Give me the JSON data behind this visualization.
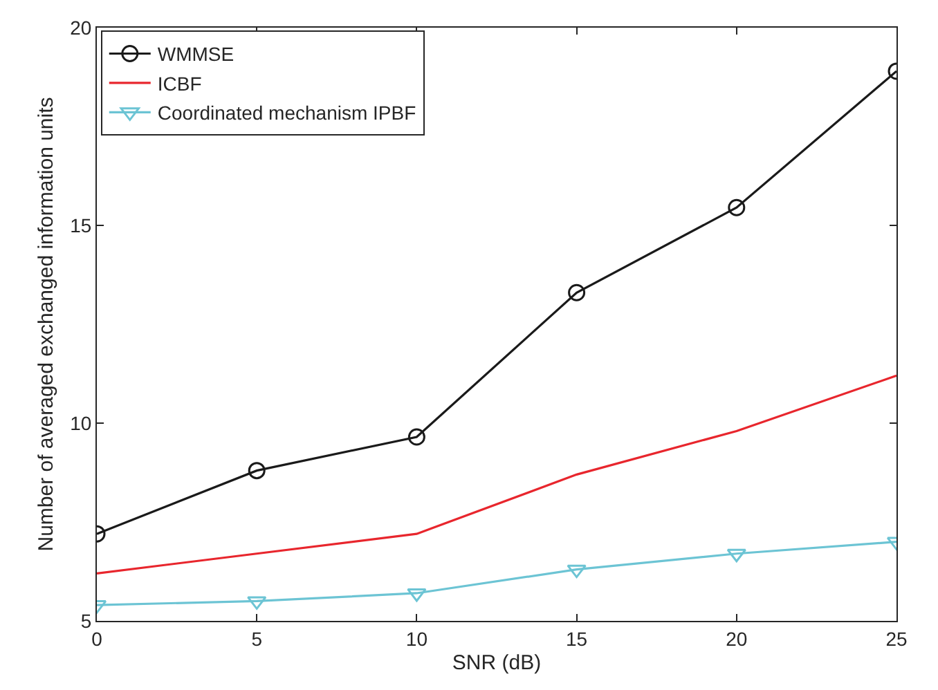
{
  "chart_data": {
    "type": "line",
    "xlabel": "SNR (dB)",
    "ylabel": "Number of averaged exchanged information units",
    "x": [
      0,
      5,
      10,
      15,
      20,
      25
    ],
    "series": [
      {
        "name": "WMMSE",
        "color": "#1a1a1a",
        "marker": "circle",
        "values": [
          7.2,
          8.8,
          9.65,
          13.3,
          15.45,
          18.9
        ]
      },
      {
        "name": "ICBF",
        "color": "#e8262d",
        "marker": "none",
        "values": [
          6.2,
          6.7,
          7.2,
          8.7,
          9.8,
          11.2
        ]
      },
      {
        "name": "Coordinated mechanism IPBF",
        "color": "#6cc4d4",
        "marker": "triangle-down",
        "values": [
          5.4,
          5.5,
          5.7,
          6.3,
          6.7,
          7.0
        ]
      }
    ],
    "xlim": [
      0,
      25
    ],
    "xticks": [
      0,
      5,
      10,
      15,
      20,
      25
    ],
    "ylim": [
      5,
      20
    ],
    "yticks": [
      5,
      10,
      15,
      20
    ],
    "grid": false,
    "legend": "top left",
    "line_style": "solid"
  }
}
